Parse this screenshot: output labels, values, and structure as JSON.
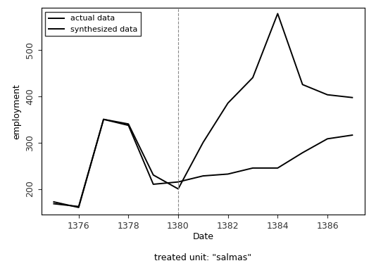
{
  "chart_data": {
    "type": "line",
    "x_label": "Date",
    "subtitle": "treated unit: \"salmas\"",
    "y_label": "employment",
    "x": [
      1375,
      1376,
      1377,
      1378,
      1379,
      1380,
      1381,
      1382,
      1383,
      1384,
      1385,
      1386,
      1387
    ],
    "series": [
      {
        "name": "actual data",
        "color": "#000000",
        "line_style": "solid",
        "values": [
          172,
          160,
          350,
          340,
          230,
          200,
          300,
          385,
          440,
          578,
          425,
          403,
          397
        ]
      },
      {
        "name": "synthesized data",
        "color": "#000000",
        "line_style": "solid",
        "values": [
          168,
          162,
          350,
          337,
          210,
          215,
          228,
          232,
          245,
          245,
          278,
          308,
          316
        ]
      }
    ],
    "vline": 1380,
    "xlim": [
      1374.5,
      1387.5
    ],
    "xticks": [
      1376,
      1378,
      1380,
      1382,
      1384,
      1386
    ],
    "ylim": [
      145,
      590
    ],
    "yticks": [
      200,
      300,
      400,
      500
    ],
    "legend": "upper left",
    "grid": false
  }
}
